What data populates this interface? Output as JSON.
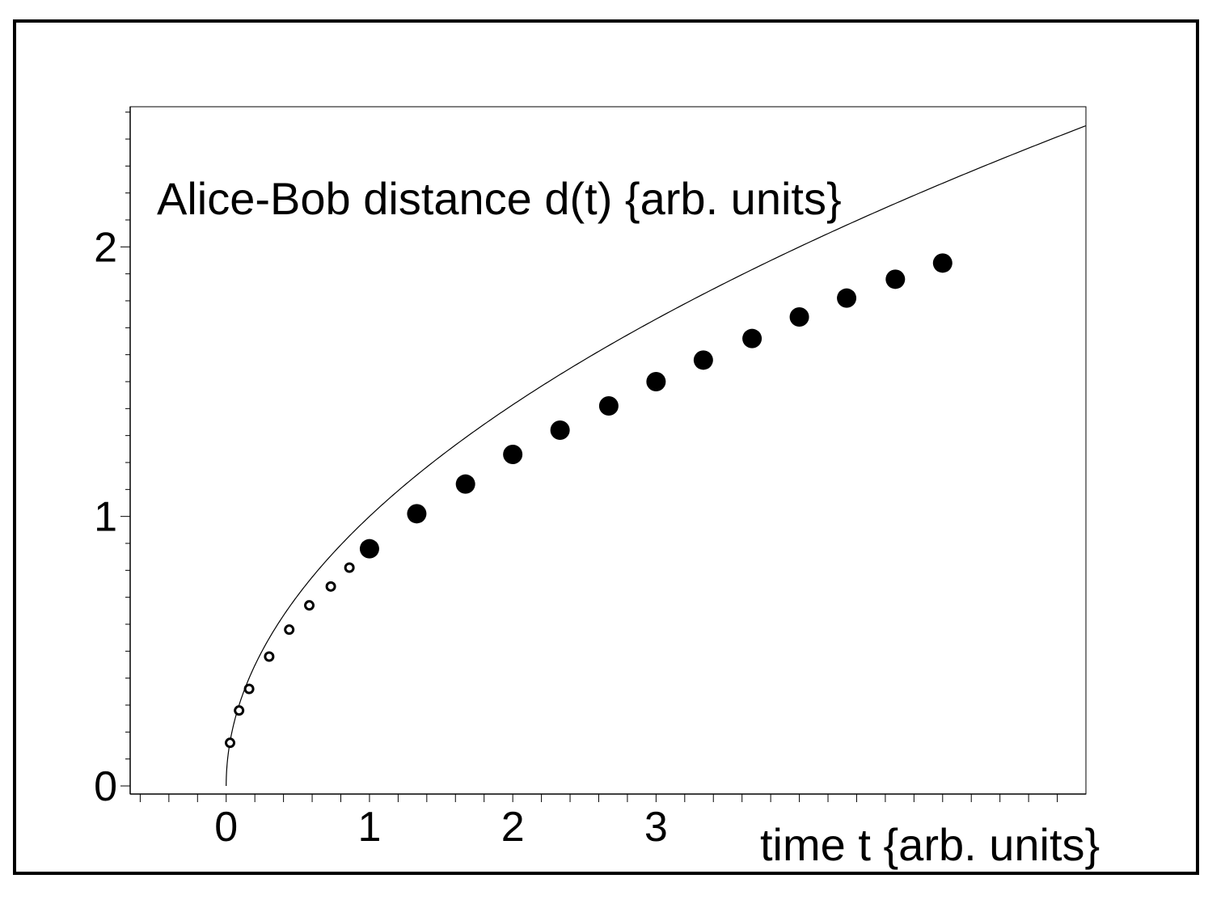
{
  "chart_data": {
    "type": "scatter",
    "title": "Alice-Bob distance d(t) {arb. units}",
    "xlabel": "time t {arb. units}",
    "ylabel": "",
    "xlim": [
      -0.67,
      6.0
    ],
    "ylim": [
      -0.03,
      2.52
    ],
    "x_tick_labels": [
      {
        "value": 0.0,
        "label": "0"
      },
      {
        "value": 1.0,
        "label": "1"
      },
      {
        "value": 2.0,
        "label": "2"
      },
      {
        "value": 3.0,
        "label": "3"
      }
    ],
    "y_ticks": [
      0,
      1,
      2
    ],
    "curve": {
      "formula": "d(t) = sqrt(t)",
      "x_range": [
        0.0,
        6.0
      ]
    },
    "series": [
      {
        "marker": "small-ring",
        "x": [
          0.027,
          0.09,
          0.16,
          0.3,
          0.44,
          0.58,
          0.73,
          0.86
        ],
        "y": [
          0.16,
          0.28,
          0.36,
          0.48,
          0.58,
          0.67,
          0.74,
          0.81
        ]
      },
      {
        "marker": "filled-dot",
        "x": [
          1.0,
          1.33,
          1.67,
          2.0,
          2.33,
          2.67,
          3.0,
          3.33,
          3.67,
          4.0,
          4.33,
          4.67,
          5.0
        ],
        "y": [
          0.88,
          1.01,
          1.12,
          1.23,
          1.32,
          1.41,
          1.5,
          1.58,
          1.66,
          1.74,
          1.81,
          1.88,
          1.94
        ]
      }
    ],
    "grid": false,
    "colors": {
      "line": "#000000",
      "marker": "#000000",
      "background": "#ffffff"
    }
  }
}
